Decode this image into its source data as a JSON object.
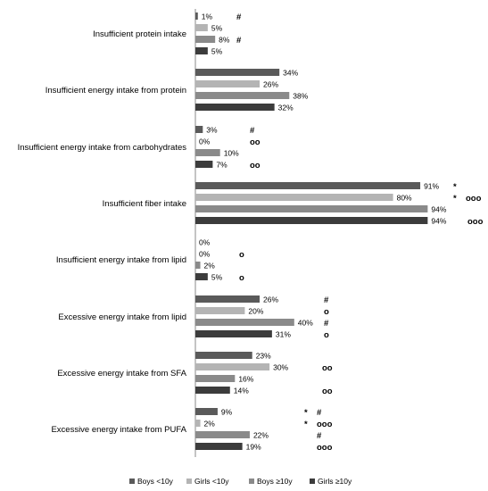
{
  "chart_data": {
    "type": "bar",
    "orientation": "horizontal",
    "categories": [
      "Insufficient protein intake",
      "Insufficient energy intake from protein",
      "Insufficient energy intake from carbohydrates",
      "Insufficient fiber intake",
      "Insufficient energy intake from lipid",
      "Excessive energy intake from lipid",
      "Excessive energy intake from SFA",
      "Excessive energy intake from PUFA"
    ],
    "series": [
      {
        "name": "Boys <10y",
        "color": "#5a5a5a",
        "values": [
          1,
          34,
          3,
          91,
          0,
          26,
          23,
          9
        ]
      },
      {
        "name": "Girls <10y",
        "color": "#b4b4b4",
        "values": [
          5,
          26,
          0,
          80,
          0,
          20,
          30,
          2
        ]
      },
      {
        "name": "Boys ≥10y",
        "color": "#8a8a8a",
        "values": [
          8,
          38,
          10,
          94,
          2,
          40,
          16,
          22
        ]
      },
      {
        "name": "Girls ≥10y",
        "color": "#3c3c3c",
        "values": [
          5,
          32,
          7,
          94,
          5,
          31,
          14,
          19
        ]
      }
    ],
    "data_labels": [
      [
        "1%",
        "5%",
        "8%",
        "5%"
      ],
      [
        "34%",
        "26%",
        "38%",
        "32%"
      ],
      [
        "3%",
        "0%",
        "10%",
        "7%"
      ],
      [
        "91%",
        "80%",
        "94%",
        "94%"
      ],
      [
        "0%",
        "0%",
        "2%",
        "5%"
      ],
      [
        "26%",
        "20%",
        "40%",
        "31%"
      ],
      [
        "23%",
        "30%",
        "16%",
        "14%"
      ],
      [
        "9%",
        "2%",
        "22%",
        "19%"
      ]
    ],
    "significance": [
      [
        "#",
        "",
        "#",
        ""
      ],
      [
        "",
        "",
        "",
        ""
      ],
      [
        "#",
        "oo",
        "",
        "oo"
      ],
      [
        "*",
        "* ooo",
        "",
        "ooo"
      ],
      [
        "",
        "o",
        "",
        "o"
      ],
      [
        "#",
        "o",
        "#",
        "o"
      ],
      [
        "",
        "oo",
        "",
        "oo"
      ],
      [
        "* #",
        "* ooo",
        "#",
        "ooo"
      ]
    ],
    "xlim": [
      0,
      100
    ],
    "legend_position": "bottom",
    "grid": false
  }
}
